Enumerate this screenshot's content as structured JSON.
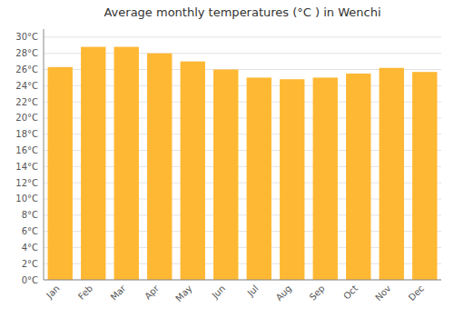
{
  "chart_data": {
    "type": "bar",
    "title": "Average monthly temperatures (°C ) in Wenchi",
    "categories": [
      "Jan",
      "Feb",
      "Mar",
      "Apr",
      "May",
      "Jun",
      "Jul",
      "Aug",
      "Sep",
      "Oct",
      "Nov",
      "Dec"
    ],
    "values": [
      26.3,
      28.8,
      28.8,
      28.0,
      27.0,
      26.0,
      25.0,
      24.8,
      25.0,
      25.5,
      26.2,
      25.7
    ],
    "color": "#FFB833",
    "ylim": [
      0,
      31
    ],
    "yticks": [
      {
        "value": 0,
        "label": "0°C"
      },
      {
        "value": 2,
        "label": "2°C"
      },
      {
        "value": 4,
        "label": "4°C"
      },
      {
        "value": 6,
        "label": "6°C"
      },
      {
        "value": 8,
        "label": "8°C"
      },
      {
        "value": 10,
        "label": "10°C"
      },
      {
        "value": 12,
        "label": "12°C"
      },
      {
        "value": 14,
        "label": "14°C"
      },
      {
        "value": 16,
        "label": "16°C"
      },
      {
        "value": 18,
        "label": "18°C"
      },
      {
        "value": 20,
        "label": "20°C"
      },
      {
        "value": 22,
        "label": "22°C"
      },
      {
        "value": 24,
        "label": "24°C"
      },
      {
        "value": 26,
        "label": "26°C"
      },
      {
        "value": 28,
        "label": "28°C"
      },
      {
        "value": 30,
        "label": "30°C"
      }
    ],
    "grid": true
  }
}
